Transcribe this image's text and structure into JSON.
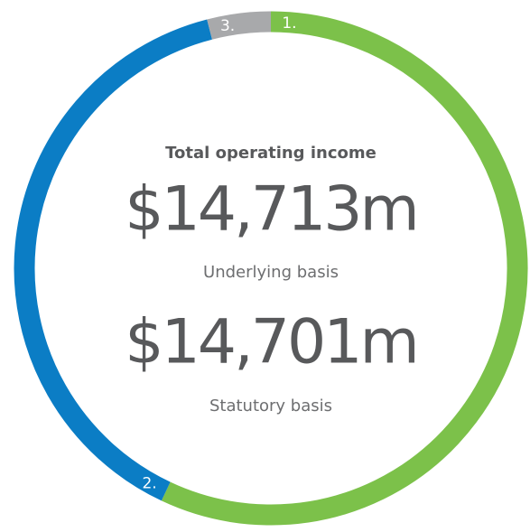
{
  "chart_data": {
    "type": "donut",
    "title": "Total operating income",
    "annotations": [
      "$14,713m",
      "Underlying basis",
      "$14,701m",
      "Statutory basis"
    ],
    "categories": [
      "1.",
      "2.",
      "3."
    ],
    "values": [
      57,
      39,
      4
    ],
    "colors": [
      "#7cc14a",
      "#0b7dc5",
      "#a8a9ab"
    ]
  }
}
